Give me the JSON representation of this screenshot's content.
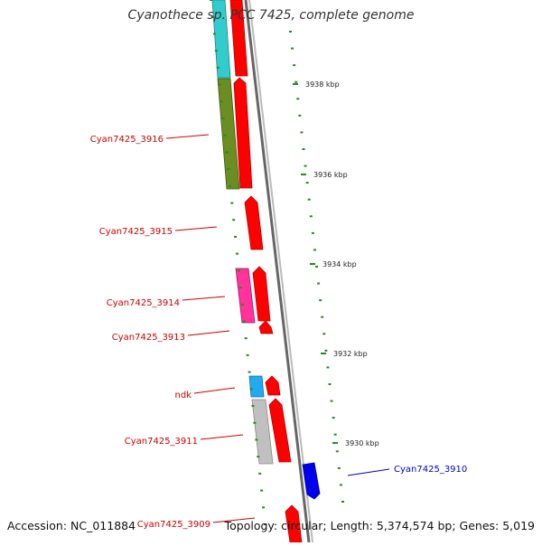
{
  "title": "Cyanothece sp. PCC 7425, complete genome",
  "footer": {
    "accession": "Accession: NC_011884",
    "topology": "Topology: circular; Length: 5,374,574 bp; Genes: 5,019"
  },
  "kbp_labels": [
    "3938 kbp",
    "3936 kbp",
    "3934 kbp",
    "3932 kbp",
    "3930 kbp"
  ],
  "gene_labels": [
    {
      "name": "Cyan7425_3916",
      "color": "#cc0000"
    },
    {
      "name": "Cyan7425_3915",
      "color": "#cc0000"
    },
    {
      "name": "Cyan7425_3914",
      "color": "#cc0000"
    },
    {
      "name": "Cyan7425_3913",
      "color": "#cc0000"
    },
    {
      "name": "ndk",
      "color": "#cc0000"
    },
    {
      "name": "Cyan7425_3911",
      "color": "#cc0000"
    },
    {
      "name": "Cyan7425_3910",
      "color": "#0000cc"
    },
    {
      "name": "Cyan7425_3909",
      "color": "#cc0000"
    }
  ],
  "colors": {
    "cds_red": "#ff0000",
    "cyan": "#33cccc",
    "olive": "#6b8e23",
    "magenta": "#ff3399",
    "light_blue": "#22aaee",
    "gray": "#c0c0c0",
    "blue": "#0000ee",
    "tick_green": "#228b22",
    "backbone": "#777777"
  }
}
